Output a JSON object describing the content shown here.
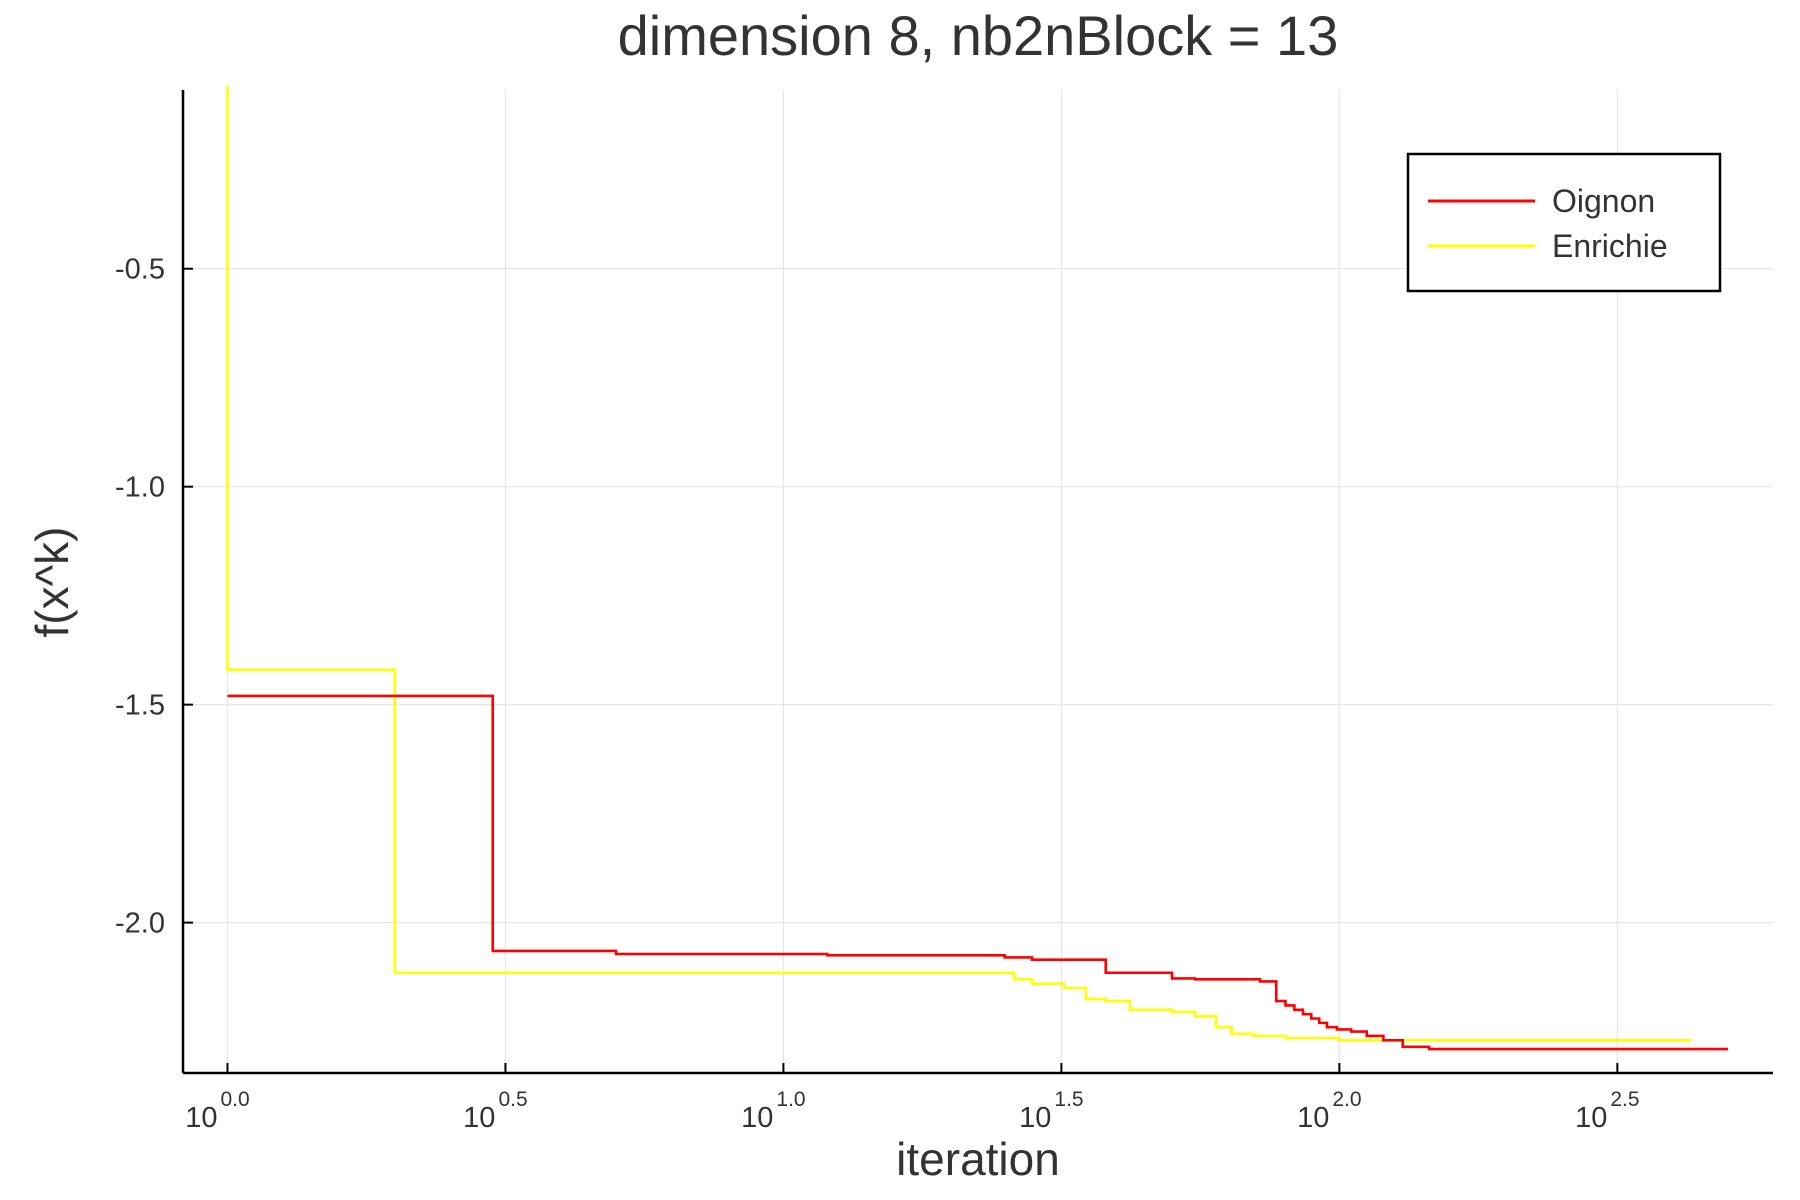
{
  "chart_data": {
    "type": "line",
    "title": "dimension 8, nb2nBlock = 13",
    "xlabel": "iteration",
    "ylabel": "f(x^k)",
    "xscale": "log10",
    "xlim_log10": [
      -0.08,
      2.78
    ],
    "ylim": [
      -2.345,
      -0.09
    ],
    "grid": true,
    "legend_position": "top-right",
    "x_ticks": [
      {
        "base": "10",
        "exp": "0.0",
        "value": 0.0
      },
      {
        "base": "10",
        "exp": "0.5",
        "value": 0.5
      },
      {
        "base": "10",
        "exp": "1.0",
        "value": 1.0
      },
      {
        "base": "10",
        "exp": "1.5",
        "value": 1.5
      },
      {
        "base": "10",
        "exp": "2.0",
        "value": 2.0
      },
      {
        "base": "10",
        "exp": "2.5",
        "value": 2.5
      }
    ],
    "y_ticks": [
      {
        "label": "-0.5",
        "value": -0.5
      },
      {
        "label": "-1.0",
        "value": -1.0
      },
      {
        "label": "-1.5",
        "value": -1.5
      },
      {
        "label": "-2.0",
        "value": -2.0
      }
    ],
    "series": [
      {
        "name": "Oignon",
        "color": "#ff0000",
        "step": "post",
        "x": [
          1,
          3,
          5,
          12,
          25,
          28,
          38,
          50,
          55,
          72,
          77,
          80,
          83,
          86,
          89,
          92,
          95,
          99,
          105,
          112,
          120,
          130,
          145,
          500
        ],
        "y": [
          -1.48,
          -2.065,
          -2.072,
          -2.075,
          -2.08,
          -2.085,
          -2.115,
          -2.128,
          -2.13,
          -2.135,
          -2.18,
          -2.19,
          -2.2,
          -2.21,
          -2.22,
          -2.23,
          -2.24,
          -2.245,
          -2.25,
          -2.26,
          -2.27,
          -2.285,
          -2.29,
          -2.29
        ]
      },
      {
        "name": "Enrichie",
        "color": "#ffff00",
        "step": "post",
        "x": [
          1,
          1,
          2,
          26,
          28,
          32,
          35,
          38,
          42,
          50,
          55,
          60,
          64,
          70,
          80,
          100,
          120,
          430
        ],
        "y": [
          -0.08,
          -1.42,
          -2.115,
          -2.13,
          -2.14,
          -2.15,
          -2.175,
          -2.18,
          -2.2,
          -2.205,
          -2.215,
          -2.24,
          -2.255,
          -2.26,
          -2.265,
          -2.27,
          -2.27,
          -2.27
        ]
      }
    ]
  }
}
